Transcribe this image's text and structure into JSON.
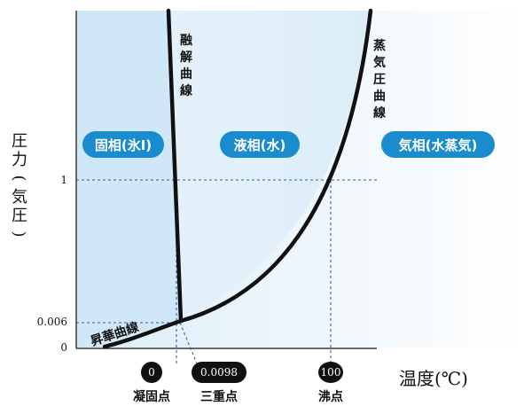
{
  "phases": {
    "solid": "固相(氷I)",
    "liquid": "液相(水)",
    "gas": "気相(水蒸気)"
  },
  "curves": {
    "melting": [
      "融",
      "解",
      "曲",
      "線"
    ],
    "vapor": [
      "蒸",
      "気",
      "圧",
      "曲",
      "線"
    ],
    "sublimation": "昇華曲線"
  },
  "axes": {
    "y_label": [
      "圧",
      "力",
      "(",
      "気",
      "圧",
      ")"
    ],
    "x_label": "温度(℃)",
    "y_ticks": [
      "1",
      "0.006",
      "0"
    ]
  },
  "points": {
    "freezing": {
      "value": "0",
      "label": "凝固点"
    },
    "triple": {
      "value": "0.0098",
      "label": "三重点"
    },
    "boiling": {
      "value": "100",
      "label": "沸点"
    }
  },
  "colors": {
    "solid_region": "#cfe7f7",
    "pill": "#1a8ccd",
    "guide": "#2f5fa8",
    "curve": "#111111",
    "badge": "#111111"
  }
}
